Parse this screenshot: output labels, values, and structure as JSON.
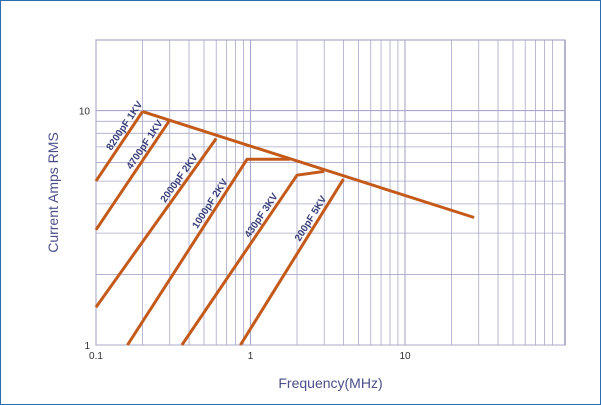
{
  "chart_data": {
    "type": "line",
    "title": "",
    "xlabel": "Frequency(MHz)",
    "ylabel": "Current Amps RMS",
    "xscale": "log",
    "yscale": "log",
    "xlim": [
      0.1,
      100
    ],
    "ylim": [
      1,
      20
    ],
    "grid": true,
    "x_tick_labels": [
      {
        "value": 0.1,
        "label": "0.1"
      },
      {
        "value": 1,
        "label": "1"
      },
      {
        "value": 10,
        "label": "10"
      }
    ],
    "y_tick_labels": [
      {
        "value": 1,
        "label": "1"
      },
      {
        "value": 10,
        "label": "10"
      }
    ],
    "line_color": "#c45a1a",
    "grid_color": "#a8a8c8",
    "series": [
      {
        "name": "8200pF 1KV",
        "points": [
          [
            0.1,
            5.0
          ],
          [
            0.2,
            9.9
          ]
        ]
      },
      {
        "name": "4700pF 1KV",
        "points": [
          [
            0.1,
            3.1
          ],
          [
            0.3,
            9.1
          ]
        ]
      },
      {
        "name": "2000pF 2KV",
        "points": [
          [
            0.1,
            1.45
          ],
          [
            0.6,
            7.6
          ]
        ]
      },
      {
        "name": "1000pF 2KV",
        "points": [
          [
            0.16,
            1.0
          ],
          [
            0.95,
            6.2
          ],
          [
            1.8,
            6.2
          ]
        ]
      },
      {
        "name": "430pF 3KV",
        "points": [
          [
            0.36,
            1.0
          ],
          [
            2.0,
            5.3
          ],
          [
            3.0,
            5.5
          ]
        ]
      },
      {
        "name": "200pF 5KV",
        "points": [
          [
            0.86,
            1.0
          ],
          [
            4.0,
            5.1
          ]
        ]
      },
      {
        "name": "",
        "points": [
          [
            0.2,
            9.9
          ],
          [
            28,
            3.5
          ]
        ]
      }
    ]
  }
}
